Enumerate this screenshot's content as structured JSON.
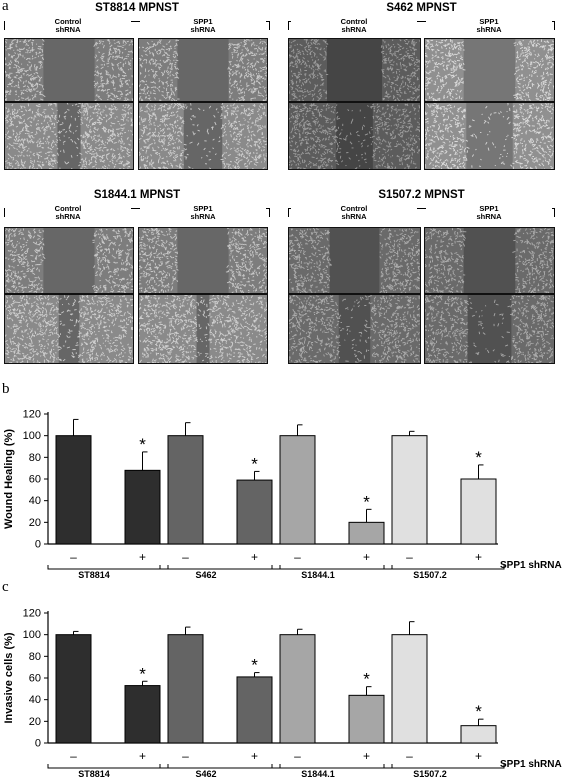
{
  "panel_a": {
    "letter": "a",
    "groups": [
      {
        "title": "ST8814 MPNST",
        "control_line1": "Control",
        "control_line2": "shRNA",
        "spp1_line1": "SPP1",
        "spp1_line2": "shRNA"
      },
      {
        "title": "S462 MPNST",
        "control_line1": "Control",
        "control_line2": "shRNA",
        "spp1_line1": "SPP1",
        "spp1_line2": "shRNA"
      },
      {
        "title": "S1844.1 MPNST",
        "control_line1": "Control",
        "control_line2": "shRNA",
        "spp1_line1": "SPP1",
        "spp1_line2": "shRNA"
      },
      {
        "title": "S1507.2 MPNST",
        "control_line1": "Control",
        "control_line2": "shRNA",
        "spp1_line1": "SPP1",
        "spp1_line2": "shRNA"
      }
    ]
  },
  "panel_b_letter": "b",
  "panel_c_letter": "c",
  "chart_data": [
    {
      "type": "bar",
      "ylabel": "Wound Healing (%)",
      "ylim": [
        0,
        120
      ],
      "yticks": [
        0,
        20,
        40,
        60,
        80,
        100,
        120
      ],
      "groups": [
        "ST8814",
        "S462",
        "S1844.1",
        "S1507.2"
      ],
      "conditions": [
        "–",
        "+"
      ],
      "condition_label": "SPP1 shRNA",
      "values": [
        100,
        68,
        100,
        59,
        100,
        20,
        100,
        60
      ],
      "errors": [
        15,
        17,
        12,
        8,
        10,
        12,
        4,
        13
      ],
      "significant": [
        false,
        true,
        false,
        true,
        false,
        true,
        false,
        true
      ],
      "significance_mark": "*",
      "colors": [
        "#2e2e2e",
        "#646464",
        "#a6a6a6",
        "#e0e0e0"
      ]
    },
    {
      "type": "bar",
      "ylabel": "Invasive cells (%)",
      "ylim": [
        0,
        120
      ],
      "yticks": [
        0,
        20,
        40,
        60,
        80,
        100,
        120
      ],
      "groups": [
        "ST8814",
        "S462",
        "S1844.1",
        "S1507.2"
      ],
      "conditions": [
        "–",
        "+"
      ],
      "condition_label": "SPP1 shRNA",
      "values": [
        100,
        53,
        100,
        61,
        100,
        44,
        100,
        16
      ],
      "errors": [
        3,
        4,
        7,
        4,
        5,
        8,
        12,
        6
      ],
      "significant": [
        false,
        true,
        false,
        true,
        false,
        true,
        false,
        true
      ],
      "significance_mark": "*",
      "colors": [
        "#2e2e2e",
        "#646464",
        "#a6a6a6",
        "#e0e0e0"
      ]
    }
  ]
}
